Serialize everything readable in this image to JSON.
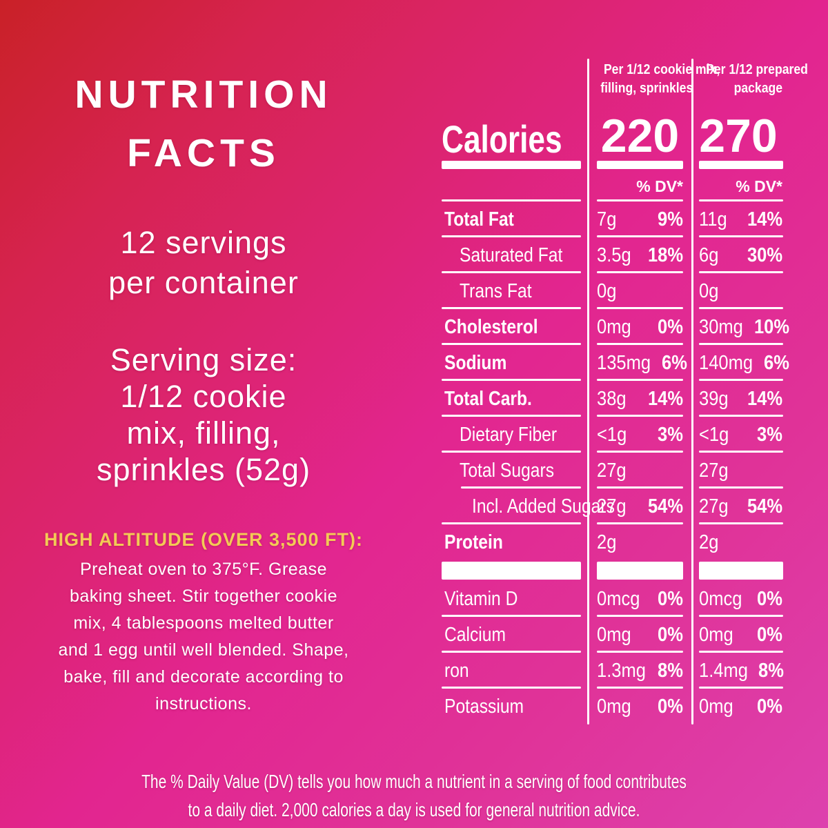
{
  "colors": {
    "background_top_left": "#c92127",
    "background_middle": "#e2258f",
    "background_bottom_right": "#dd41ae",
    "text": "#ffffff",
    "high_altitude_accent": "#f3ca55"
  },
  "left_panel": {
    "title_lines": [
      "NUTRITION",
      "FACTS"
    ],
    "servings_lines": [
      "12 servings",
      "per container"
    ],
    "serving_size_lines": [
      "Serving size:",
      "1/12 cookie",
      "mix, filling,",
      "sprinkles (52g)"
    ],
    "high_altitude_heading": "HIGH ALTITUDE (OVER 3,500 FT):",
    "instructions_lines": [
      "Preheat oven to 375°F. Grease",
      "baking sheet. Stir together cookie",
      "mix, 4 tablespoons melted butter",
      "and 1 egg until well blended. Shape,",
      "bake, fill and decorate according to",
      "instructions."
    ]
  },
  "table": {
    "col1_header_lines": [
      "Per 1/12 cookie mix,",
      "filling, sprinkles"
    ],
    "col2_header_lines": [
      "Per 1/12 prepared",
      "package"
    ],
    "calories_label": "Calories",
    "col1_calories": "220",
    "col2_calories": "270",
    "dv_label": "% DV*",
    "rows": [
      {
        "label": "Total Fat",
        "bold": true,
        "indent": 0,
        "v1": "7g",
        "p1": "9%",
        "v2": "11g",
        "p2": "14%"
      },
      {
        "label": "Saturated Fat",
        "bold": false,
        "indent": 1,
        "v1": "3.5g",
        "p1": "18%",
        "v2": "6g",
        "p2": "30%"
      },
      {
        "label": "Trans Fat",
        "bold": false,
        "indent": 1,
        "v1": "0g",
        "p1": "",
        "v2": "0g",
        "p2": ""
      },
      {
        "label": "Cholesterol",
        "bold": true,
        "indent": 0,
        "v1": "0mg",
        "p1": "0%",
        "v2": "30mg",
        "p2": "10%"
      },
      {
        "label": "Sodium",
        "bold": true,
        "indent": 0,
        "v1": "135mg",
        "p1": "6%",
        "v2": "140mg",
        "p2": "6%"
      },
      {
        "label": "Total Carb.",
        "bold": true,
        "indent": 0,
        "v1": "38g",
        "p1": "14%",
        "v2": "39g",
        "p2": "14%"
      },
      {
        "label": "Dietary Fiber",
        "bold": false,
        "indent": 1,
        "v1": "<1g",
        "p1": "3%",
        "v2": "<1g",
        "p2": "3%"
      },
      {
        "label": "Total Sugars",
        "bold": false,
        "indent": 1,
        "v1": "27g",
        "p1": "",
        "v2": "27g",
        "p2": "",
        "label_line_indent": true
      },
      {
        "label": "Incl. Added Sugars",
        "bold": false,
        "indent": 2,
        "v1": "27g",
        "p1": "54%",
        "v2": "27g",
        "p2": "54%"
      },
      {
        "label": "Protein",
        "bold": true,
        "indent": 0,
        "v1": "2g",
        "p1": "",
        "v2": "2g",
        "p2": "",
        "no_line": true
      }
    ],
    "vitamin_rows": [
      {
        "label": "Vitamin D",
        "bold": false,
        "indent": 0,
        "v1": "0mcg",
        "p1": "0%",
        "v2": "0mcg",
        "p2": "0%"
      },
      {
        "label": "Calcium",
        "bold": false,
        "indent": 0,
        "v1": "0mg",
        "p1": "0%",
        "v2": "0mg",
        "p2": "0%"
      },
      {
        "label": "ron",
        "bold": false,
        "indent": 0,
        "v1": "1.3mg",
        "p1": "8%",
        "v2": "1.4mg",
        "p2": "8%"
      },
      {
        "label": "Potassium",
        "bold": false,
        "indent": 0,
        "v1": "0mg",
        "p1": "0%",
        "v2": "0mg",
        "p2": "0%",
        "no_line": true
      }
    ]
  },
  "footer_lines": [
    "The % Daily Value (DV) tells you how much a nutrient in a serving of food contributes",
    "to a daily diet. 2,000 calories a day is used for general nutrition advice."
  ]
}
